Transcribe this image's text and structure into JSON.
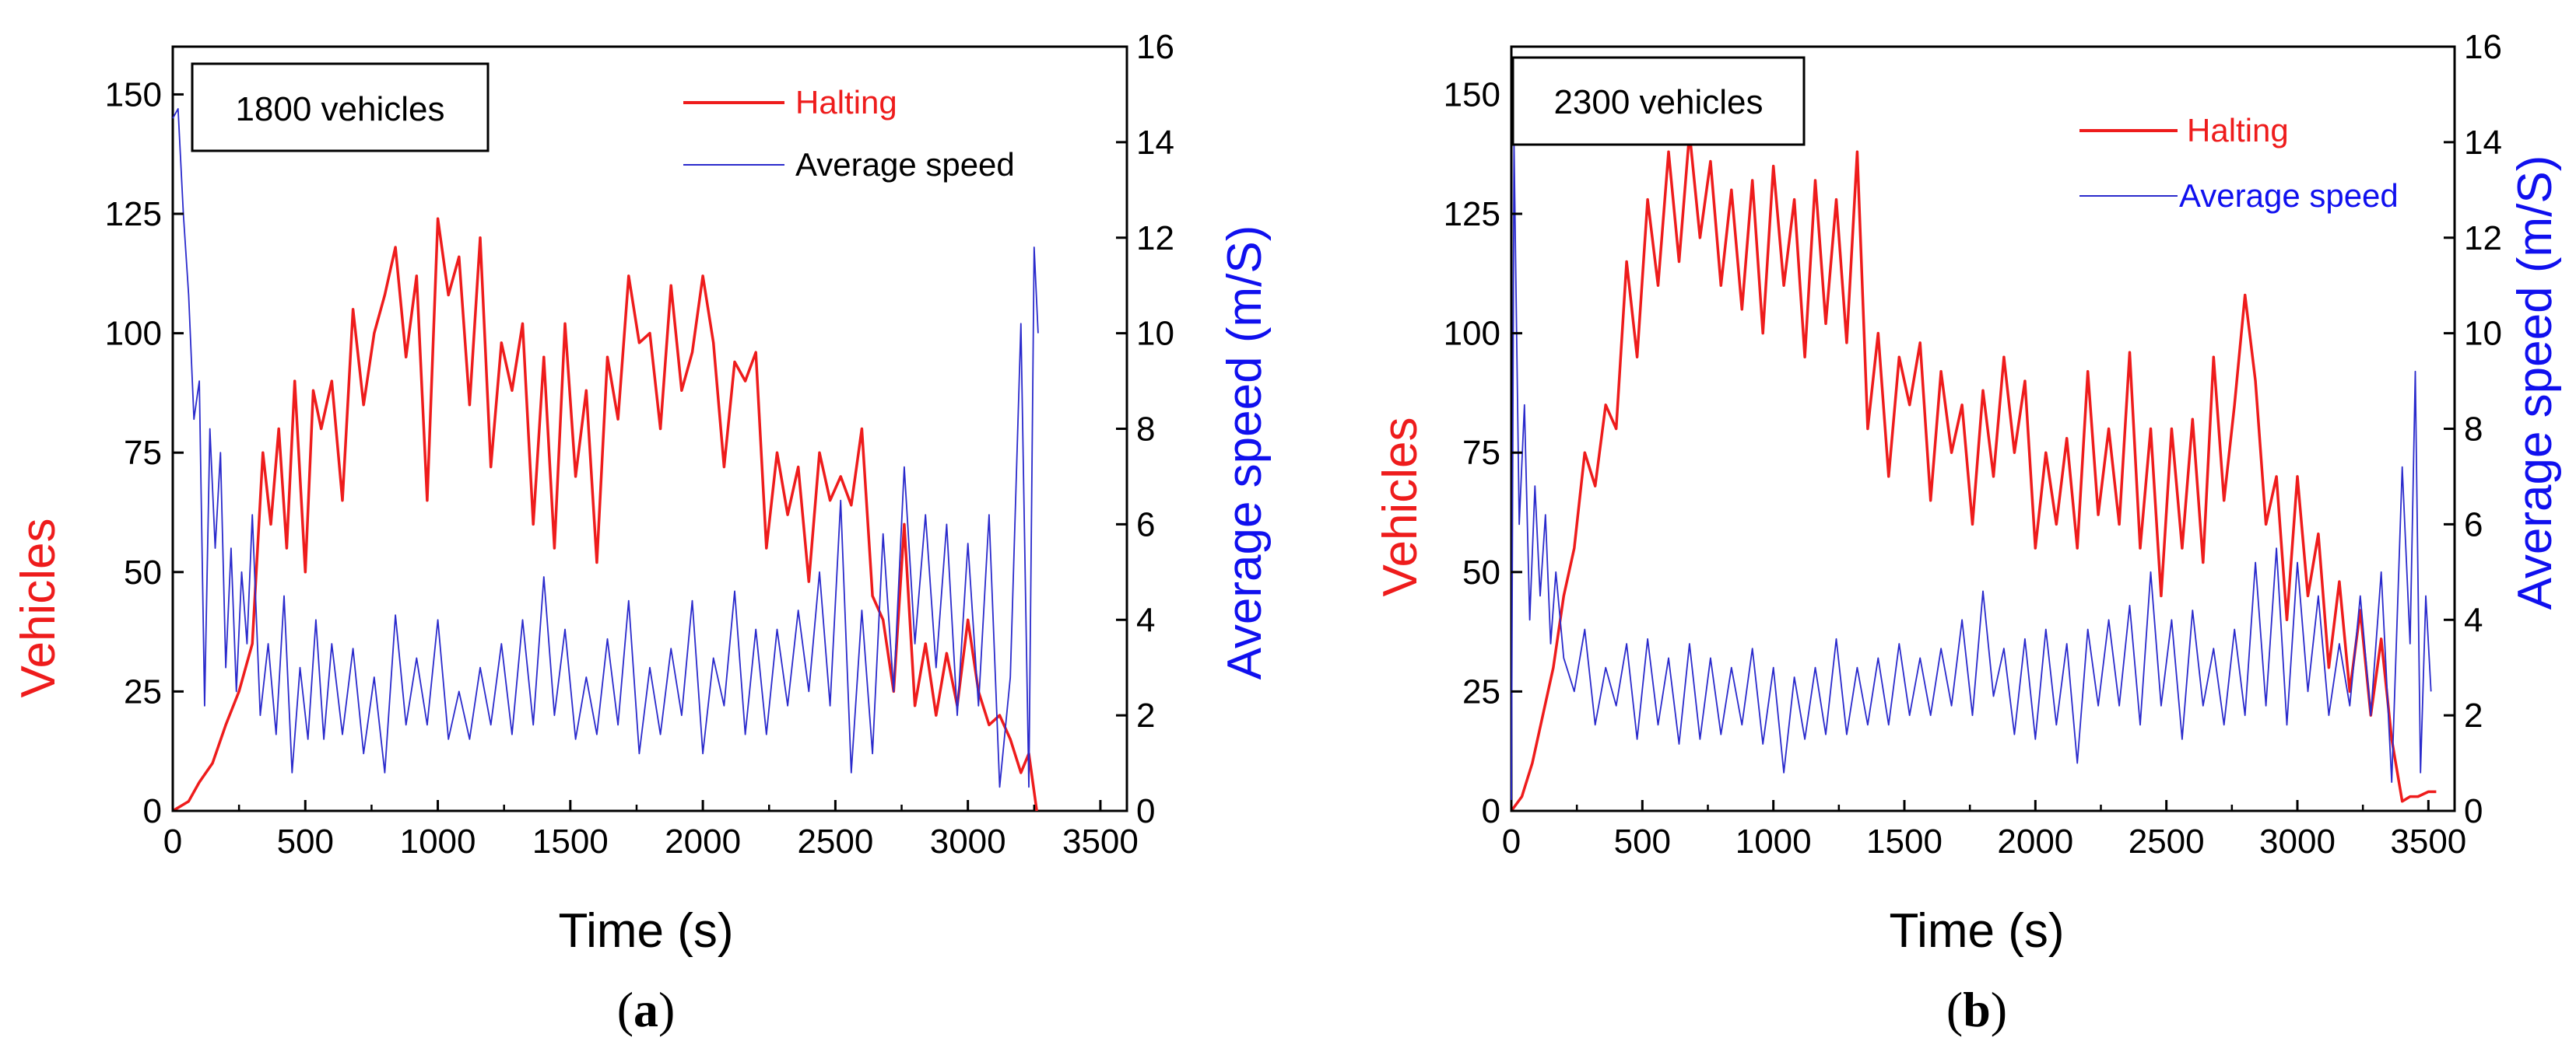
{
  "figure": {
    "panel_captions": [
      "(a)",
      "(b)"
    ]
  },
  "colors": {
    "halting": "#ee1c1c",
    "speed": "#2a2acc",
    "vehicles_axis_title": "#ee1c1c",
    "speed_axis_title": "#1010ee",
    "halting_legend_text": "#ee1c1c",
    "speed_legend_text_a": "#000000",
    "speed_legend_text_b": "#1010ee"
  },
  "chart_data": [
    {
      "type": "line",
      "panel": "(a)",
      "inset_label": "1800 vehicles",
      "xlabel": "Time (s)",
      "ylabel": "Vehicles",
      "y2label": "Average speed (m/S)",
      "xlim": [
        0,
        3600
      ],
      "ylim": [
        0,
        160
      ],
      "y2lim": [
        0,
        16
      ],
      "xticks": [
        0,
        500,
        1000,
        1500,
        2000,
        2500,
        3000,
        3500
      ],
      "yticks": [
        0,
        25,
        50,
        75,
        100,
        125,
        150
      ],
      "y2ticks": [
        0,
        2,
        4,
        6,
        8,
        10,
        12,
        14,
        16
      ],
      "grid": false,
      "legend": "top-right",
      "series": [
        {
          "name": "Halting",
          "axis": "left",
          "x": [
            0,
            60,
            100,
            150,
            200,
            250,
            300,
            340,
            370,
            400,
            430,
            460,
            500,
            530,
            560,
            600,
            640,
            680,
            720,
            760,
            800,
            840,
            880,
            920,
            960,
            1000,
            1040,
            1080,
            1120,
            1160,
            1200,
            1240,
            1280,
            1320,
            1360,
            1400,
            1440,
            1480,
            1520,
            1560,
            1600,
            1640,
            1680,
            1720,
            1760,
            1800,
            1840,
            1880,
            1920,
            1960,
            2000,
            2040,
            2080,
            2120,
            2160,
            2200,
            2240,
            2280,
            2320,
            2360,
            2400,
            2440,
            2480,
            2520,
            2560,
            2600,
            2640,
            2680,
            2720,
            2760,
            2800,
            2840,
            2880,
            2920,
            2960,
            3000,
            3040,
            3080,
            3120,
            3160,
            3200,
            3230,
            3260
          ],
          "values": [
            0,
            2,
            6,
            10,
            18,
            25,
            35,
            75,
            60,
            80,
            55,
            90,
            50,
            88,
            80,
            90,
            65,
            105,
            85,
            100,
            108,
            118,
            95,
            112,
            65,
            124,
            108,
            116,
            85,
            120,
            72,
            98,
            88,
            102,
            60,
            95,
            55,
            102,
            70,
            88,
            52,
            95,
            82,
            112,
            98,
            100,
            80,
            110,
            88,
            96,
            112,
            98,
            72,
            94,
            90,
            96,
            55,
            75,
            62,
            72,
            48,
            75,
            65,
            70,
            64,
            80,
            45,
            40,
            25,
            60,
            22,
            35,
            20,
            33,
            22,
            40,
            25,
            18,
            20,
            15,
            8,
            12,
            0
          ]
        },
        {
          "name": "Average speed",
          "axis": "right",
          "x": [
            0,
            20,
            40,
            60,
            80,
            100,
            120,
            140,
            160,
            180,
            200,
            220,
            240,
            260,
            280,
            300,
            330,
            360,
            390,
            420,
            450,
            480,
            510,
            540,
            570,
            600,
            640,
            680,
            720,
            760,
            800,
            840,
            880,
            920,
            960,
            1000,
            1040,
            1080,
            1120,
            1160,
            1200,
            1240,
            1280,
            1320,
            1360,
            1400,
            1440,
            1480,
            1520,
            1560,
            1600,
            1640,
            1680,
            1720,
            1760,
            1800,
            1840,
            1880,
            1920,
            1960,
            2000,
            2040,
            2080,
            2120,
            2160,
            2200,
            2240,
            2280,
            2320,
            2360,
            2400,
            2440,
            2480,
            2520,
            2560,
            2600,
            2640,
            2680,
            2720,
            2760,
            2800,
            2840,
            2880,
            2920,
            2960,
            3000,
            3040,
            3080,
            3120,
            3160,
            3200,
            3230,
            3250,
            3265
          ],
          "values": [
            14.5,
            14.7,
            12.5,
            10.8,
            8.2,
            9,
            2.2,
            8,
            5.5,
            7.5,
            3,
            5.5,
            2.5,
            5,
            3.5,
            6.2,
            2,
            3.5,
            1.6,
            4.5,
            0.8,
            3,
            1.5,
            4,
            1.5,
            3.5,
            1.6,
            3.4,
            1.2,
            2.8,
            0.8,
            4.1,
            1.8,
            3.2,
            1.8,
            4,
            1.5,
            2.5,
            1.5,
            3,
            1.8,
            3.5,
            1.6,
            4,
            1.8,
            4.9,
            2,
            3.8,
            1.5,
            2.8,
            1.6,
            3.6,
            1.8,
            4.4,
            1.2,
            3,
            1.6,
            3.4,
            2,
            4.4,
            1.2,
            3.2,
            2.2,
            4.6,
            1.6,
            3.8,
            1.6,
            3.8,
            2.2,
            4.2,
            2.5,
            5,
            2.2,
            6.5,
            0.8,
            4.2,
            1.2,
            5.8,
            2.5,
            7.2,
            3.5,
            6.2,
            3,
            6,
            2,
            5.6,
            2.2,
            6.2,
            0.5,
            2.8,
            10.2,
            0.5,
            11.8,
            10
          ]
        }
      ]
    },
    {
      "type": "line",
      "panel": "(b)",
      "inset_label": "2300 vehicles",
      "xlabel": "Time (s)",
      "ylabel": "Vehicles",
      "y2label": "Average speed (m/S)",
      "xlim": [
        0,
        3600
      ],
      "ylim": [
        0,
        160
      ],
      "y2lim": [
        0,
        16
      ],
      "xticks": [
        0,
        500,
        1000,
        1500,
        2000,
        2500,
        3000,
        3500
      ],
      "yticks": [
        0,
        25,
        50,
        75,
        100,
        125,
        150
      ],
      "y2ticks": [
        0,
        2,
        4,
        6,
        8,
        10,
        12,
        14,
        16
      ],
      "grid": false,
      "legend": "top-right",
      "series": [
        {
          "name": "Halting",
          "axis": "left",
          "x": [
            0,
            40,
            80,
            120,
            160,
            200,
            240,
            280,
            320,
            360,
            400,
            440,
            480,
            520,
            560,
            600,
            640,
            680,
            720,
            760,
            800,
            840,
            880,
            920,
            960,
            1000,
            1040,
            1080,
            1120,
            1160,
            1200,
            1240,
            1280,
            1320,
            1360,
            1400,
            1440,
            1480,
            1520,
            1560,
            1600,
            1640,
            1680,
            1720,
            1760,
            1800,
            1840,
            1880,
            1920,
            1960,
            2000,
            2040,
            2080,
            2120,
            2160,
            2200,
            2240,
            2280,
            2320,
            2360,
            2400,
            2440,
            2480,
            2520,
            2560,
            2600,
            2640,
            2680,
            2720,
            2760,
            2800,
            2840,
            2880,
            2920,
            2960,
            3000,
            3040,
            3080,
            3120,
            3160,
            3200,
            3240,
            3280,
            3320,
            3360,
            3400,
            3430,
            3460,
            3500,
            3530
          ],
          "values": [
            0,
            3,
            10,
            20,
            30,
            45,
            55,
            75,
            68,
            85,
            80,
            115,
            95,
            128,
            110,
            138,
            115,
            142,
            120,
            136,
            110,
            130,
            105,
            132,
            100,
            135,
            110,
            128,
            95,
            132,
            102,
            128,
            98,
            138,
            80,
            100,
            70,
            95,
            85,
            98,
            65,
            92,
            75,
            85,
            60,
            88,
            70,
            95,
            75,
            90,
            55,
            75,
            60,
            78,
            55,
            92,
            62,
            80,
            60,
            96,
            55,
            80,
            45,
            80,
            55,
            82,
            52,
            95,
            65,
            85,
            108,
            90,
            60,
            70,
            40,
            70,
            45,
            58,
            30,
            48,
            25,
            42,
            20,
            36,
            15,
            2,
            3,
            3,
            4,
            4
          ]
        },
        {
          "name": "Average speed",
          "axis": "right",
          "x": [
            0,
            10,
            30,
            50,
            70,
            90,
            110,
            130,
            150,
            170,
            200,
            240,
            280,
            320,
            360,
            400,
            440,
            480,
            520,
            560,
            600,
            640,
            680,
            720,
            760,
            800,
            840,
            880,
            920,
            960,
            1000,
            1040,
            1080,
            1120,
            1160,
            1200,
            1240,
            1280,
            1320,
            1360,
            1400,
            1440,
            1480,
            1520,
            1560,
            1600,
            1640,
            1680,
            1720,
            1760,
            1800,
            1840,
            1880,
            1920,
            1960,
            2000,
            2040,
            2080,
            2120,
            2160,
            2200,
            2240,
            2280,
            2320,
            2360,
            2400,
            2440,
            2480,
            2520,
            2560,
            2600,
            2640,
            2680,
            2720,
            2760,
            2800,
            2840,
            2880,
            2920,
            2960,
            3000,
            3040,
            3080,
            3120,
            3160,
            3200,
            3240,
            3280,
            3320,
            3360,
            3400,
            3430,
            3450,
            3470,
            3490,
            3510
          ],
          "values": [
            0,
            14,
            6,
            8.5,
            4,
            6.8,
            4.5,
            6.2,
            3.5,
            5,
            3.2,
            2.5,
            3.8,
            1.8,
            3,
            2.2,
            3.5,
            1.5,
            3.6,
            1.8,
            3.2,
            1.4,
            3.5,
            1.5,
            3.2,
            1.6,
            3,
            1.8,
            3.4,
            1.4,
            3,
            0.8,
            2.8,
            1.5,
            3,
            1.6,
            3.6,
            1.6,
            3,
            1.8,
            3.2,
            1.8,
            3.5,
            2,
            3.2,
            2,
            3.4,
            2.2,
            4,
            2,
            4.6,
            2.4,
            3.4,
            1.6,
            3.6,
            1.5,
            3.8,
            1.8,
            3.5,
            1,
            3.8,
            2.2,
            4,
            2.2,
            4.3,
            1.8,
            5,
            2.2,
            4,
            1.5,
            4.2,
            2.2,
            3.4,
            1.8,
            3.8,
            2,
            5.2,
            2.2,
            5.5,
            1.8,
            5.2,
            2.5,
            4.5,
            2,
            3.5,
            2.2,
            4.5,
            2,
            5,
            0.6,
            7.2,
            3.5,
            9.2,
            0.8,
            4.5,
            2.5
          ]
        }
      ]
    }
  ]
}
